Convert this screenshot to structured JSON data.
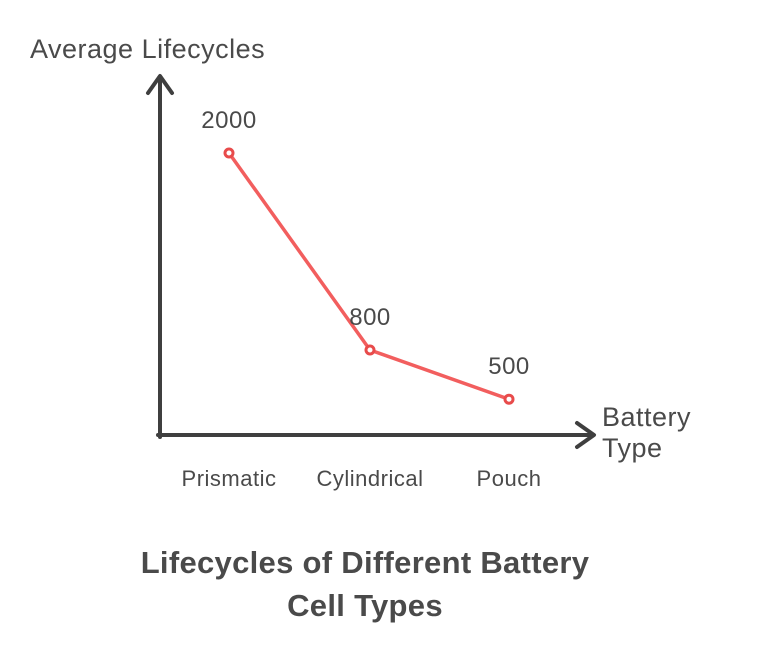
{
  "page": {
    "background_color": "#ffffff"
  },
  "chart_data": {
    "type": "line",
    "title": "Lifecycles of Different Battery Cell Types",
    "title_line1": "Lifecycles of Different Battery",
    "title_line2": "Cell Types",
    "ylabel": "Average Lifecycles",
    "xlabel": "Battery Type",
    "categories": [
      "Prismatic",
      "Cylindrical",
      "Pouch"
    ],
    "values": [
      2000,
      800,
      500
    ],
    "point_labels": [
      "2000",
      "800",
      "500"
    ],
    "series": [
      {
        "name": "Average Lifecycles",
        "values": [
          2000,
          800,
          500
        ]
      }
    ],
    "legend": "none",
    "grid": false,
    "axis_arrows": true,
    "colors": {
      "line": "#f25e5e",
      "marker_ring": "#e84b4b",
      "marker_fill": "#ffffff",
      "axis": "#3f3f3f",
      "text": "#4a4a4a",
      "background": "#ffffff"
    }
  }
}
